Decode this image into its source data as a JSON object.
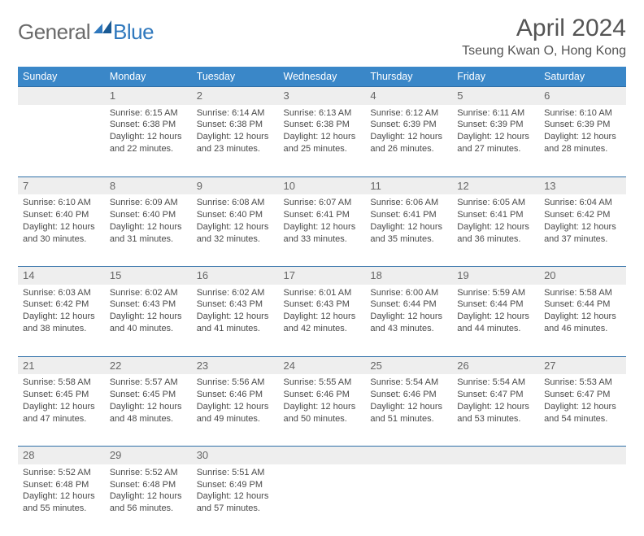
{
  "header": {
    "logo_part1": "General",
    "logo_part2": "Blue",
    "month_title": "April 2024",
    "location": "Tseung Kwan O, Hong Kong"
  },
  "weekdays": [
    "Sunday",
    "Monday",
    "Tuesday",
    "Wednesday",
    "Thursday",
    "Friday",
    "Saturday"
  ],
  "colors": {
    "header_bg": "#3a87c8",
    "header_text": "#ffffff",
    "row_separator": "#2f6fa8",
    "daynum_bg": "#eeeeee",
    "body_text": "#4a4a4a",
    "logo_blue": "#2f78bd",
    "logo_grey": "#6a6a6a"
  },
  "weeks": [
    {
      "nums": [
        "",
        "1",
        "2",
        "3",
        "4",
        "5",
        "6"
      ],
      "cells": [
        null,
        {
          "sunrise": "Sunrise: 6:15 AM",
          "sunset": "Sunset: 6:38 PM",
          "day1": "Daylight: 12 hours",
          "day2": "and 22 minutes."
        },
        {
          "sunrise": "Sunrise: 6:14 AM",
          "sunset": "Sunset: 6:38 PM",
          "day1": "Daylight: 12 hours",
          "day2": "and 23 minutes."
        },
        {
          "sunrise": "Sunrise: 6:13 AM",
          "sunset": "Sunset: 6:38 PM",
          "day1": "Daylight: 12 hours",
          "day2": "and 25 minutes."
        },
        {
          "sunrise": "Sunrise: 6:12 AM",
          "sunset": "Sunset: 6:39 PM",
          "day1": "Daylight: 12 hours",
          "day2": "and 26 minutes."
        },
        {
          "sunrise": "Sunrise: 6:11 AM",
          "sunset": "Sunset: 6:39 PM",
          "day1": "Daylight: 12 hours",
          "day2": "and 27 minutes."
        },
        {
          "sunrise": "Sunrise: 6:10 AM",
          "sunset": "Sunset: 6:39 PM",
          "day1": "Daylight: 12 hours",
          "day2": "and 28 minutes."
        }
      ]
    },
    {
      "nums": [
        "7",
        "8",
        "9",
        "10",
        "11",
        "12",
        "13"
      ],
      "cells": [
        {
          "sunrise": "Sunrise: 6:10 AM",
          "sunset": "Sunset: 6:40 PM",
          "day1": "Daylight: 12 hours",
          "day2": "and 30 minutes."
        },
        {
          "sunrise": "Sunrise: 6:09 AM",
          "sunset": "Sunset: 6:40 PM",
          "day1": "Daylight: 12 hours",
          "day2": "and 31 minutes."
        },
        {
          "sunrise": "Sunrise: 6:08 AM",
          "sunset": "Sunset: 6:40 PM",
          "day1": "Daylight: 12 hours",
          "day2": "and 32 minutes."
        },
        {
          "sunrise": "Sunrise: 6:07 AM",
          "sunset": "Sunset: 6:41 PM",
          "day1": "Daylight: 12 hours",
          "day2": "and 33 minutes."
        },
        {
          "sunrise": "Sunrise: 6:06 AM",
          "sunset": "Sunset: 6:41 PM",
          "day1": "Daylight: 12 hours",
          "day2": "and 35 minutes."
        },
        {
          "sunrise": "Sunrise: 6:05 AM",
          "sunset": "Sunset: 6:41 PM",
          "day1": "Daylight: 12 hours",
          "day2": "and 36 minutes."
        },
        {
          "sunrise": "Sunrise: 6:04 AM",
          "sunset": "Sunset: 6:42 PM",
          "day1": "Daylight: 12 hours",
          "day2": "and 37 minutes."
        }
      ]
    },
    {
      "nums": [
        "14",
        "15",
        "16",
        "17",
        "18",
        "19",
        "20"
      ],
      "cells": [
        {
          "sunrise": "Sunrise: 6:03 AM",
          "sunset": "Sunset: 6:42 PM",
          "day1": "Daylight: 12 hours",
          "day2": "and 38 minutes."
        },
        {
          "sunrise": "Sunrise: 6:02 AM",
          "sunset": "Sunset: 6:43 PM",
          "day1": "Daylight: 12 hours",
          "day2": "and 40 minutes."
        },
        {
          "sunrise": "Sunrise: 6:02 AM",
          "sunset": "Sunset: 6:43 PM",
          "day1": "Daylight: 12 hours",
          "day2": "and 41 minutes."
        },
        {
          "sunrise": "Sunrise: 6:01 AM",
          "sunset": "Sunset: 6:43 PM",
          "day1": "Daylight: 12 hours",
          "day2": "and 42 minutes."
        },
        {
          "sunrise": "Sunrise: 6:00 AM",
          "sunset": "Sunset: 6:44 PM",
          "day1": "Daylight: 12 hours",
          "day2": "and 43 minutes."
        },
        {
          "sunrise": "Sunrise: 5:59 AM",
          "sunset": "Sunset: 6:44 PM",
          "day1": "Daylight: 12 hours",
          "day2": "and 44 minutes."
        },
        {
          "sunrise": "Sunrise: 5:58 AM",
          "sunset": "Sunset: 6:44 PM",
          "day1": "Daylight: 12 hours",
          "day2": "and 46 minutes."
        }
      ]
    },
    {
      "nums": [
        "21",
        "22",
        "23",
        "24",
        "25",
        "26",
        "27"
      ],
      "cells": [
        {
          "sunrise": "Sunrise: 5:58 AM",
          "sunset": "Sunset: 6:45 PM",
          "day1": "Daylight: 12 hours",
          "day2": "and 47 minutes."
        },
        {
          "sunrise": "Sunrise: 5:57 AM",
          "sunset": "Sunset: 6:45 PM",
          "day1": "Daylight: 12 hours",
          "day2": "and 48 minutes."
        },
        {
          "sunrise": "Sunrise: 5:56 AM",
          "sunset": "Sunset: 6:46 PM",
          "day1": "Daylight: 12 hours",
          "day2": "and 49 minutes."
        },
        {
          "sunrise": "Sunrise: 5:55 AM",
          "sunset": "Sunset: 6:46 PM",
          "day1": "Daylight: 12 hours",
          "day2": "and 50 minutes."
        },
        {
          "sunrise": "Sunrise: 5:54 AM",
          "sunset": "Sunset: 6:46 PM",
          "day1": "Daylight: 12 hours",
          "day2": "and 51 minutes."
        },
        {
          "sunrise": "Sunrise: 5:54 AM",
          "sunset": "Sunset: 6:47 PM",
          "day1": "Daylight: 12 hours",
          "day2": "and 53 minutes."
        },
        {
          "sunrise": "Sunrise: 5:53 AM",
          "sunset": "Sunset: 6:47 PM",
          "day1": "Daylight: 12 hours",
          "day2": "and 54 minutes."
        }
      ]
    },
    {
      "nums": [
        "28",
        "29",
        "30",
        "",
        "",
        "",
        ""
      ],
      "cells": [
        {
          "sunrise": "Sunrise: 5:52 AM",
          "sunset": "Sunset: 6:48 PM",
          "day1": "Daylight: 12 hours",
          "day2": "and 55 minutes."
        },
        {
          "sunrise": "Sunrise: 5:52 AM",
          "sunset": "Sunset: 6:48 PM",
          "day1": "Daylight: 12 hours",
          "day2": "and 56 minutes."
        },
        {
          "sunrise": "Sunrise: 5:51 AM",
          "sunset": "Sunset: 6:49 PM",
          "day1": "Daylight: 12 hours",
          "day2": "and 57 minutes."
        },
        null,
        null,
        null,
        null
      ]
    }
  ]
}
